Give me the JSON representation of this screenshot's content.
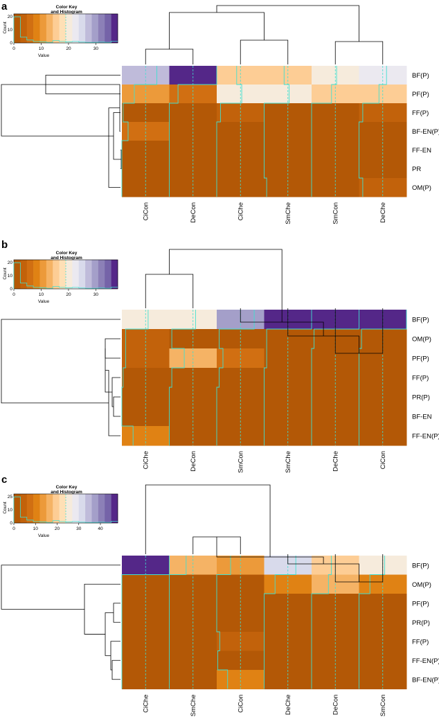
{
  "colors": {
    "palette": [
      "#b35806",
      "#c2620b",
      "#d16f12",
      "#e08214",
      "#ec9a3a",
      "#f5b365",
      "#fdcd95",
      "#fee0b6",
      "#f6ebdc",
      "#ebe9f0",
      "#d8daeb",
      "#bfbbda",
      "#a49fc9",
      "#8c80b7",
      "#7563a8",
      "#542788"
    ],
    "trace": "#40e0d0",
    "line": "#000000"
  },
  "chart_data": [
    {
      "type": "heatmap",
      "panel": "a",
      "color_key": {
        "title_line1": "Color Key",
        "title_line2": "and Histogram",
        "xlabel": "Value",
        "ylabel": "Count",
        "ticks": [
          "0",
          "10",
          "20",
          "30"
        ],
        "yticks": [
          "0",
          "10",
          "20"
        ],
        "range": [
          0,
          38
        ]
      },
      "rows": [
        "BF(P)",
        "PF(P)",
        "FF(P)",
        "BF-EN(P)",
        "FF-EN",
        "PR",
        "OM(P)"
      ],
      "cols": [
        "CiCon",
        "DeCon",
        "CiChe",
        "SmChe",
        "SmCon",
        "DeChe"
      ],
      "values": [
        [
          28,
          38,
          16,
          16,
          20,
          22
        ],
        [
          10,
          7,
          20,
          20,
          16,
          16
        ],
        [
          1,
          0,
          3,
          0,
          0,
          3
        ],
        [
          5,
          0,
          0,
          0,
          0,
          0
        ],
        [
          0,
          0,
          0,
          0,
          0,
          0
        ],
        [
          0,
          0,
          0,
          0,
          0,
          0
        ],
        [
          0,
          0,
          0,
          2,
          0,
          3
        ]
      ],
      "col_dendrogram": "((CiCon,DeCon),((CiChe,SmChe),(SmCon,DeChe)))",
      "row_dendrogram": "((BF(P),PF(P)),(FF(P),(BF-EN(P),(FF-EN,PR)),OM(P)))"
    },
    {
      "type": "heatmap",
      "panel": "b",
      "color_key": {
        "title_line1": "Color Key",
        "title_line2": "and Histogram",
        "xlabel": "Value",
        "ylabel": "Count",
        "ticks": [
          "0",
          "10",
          "20",
          "30"
        ],
        "yticks": [
          "0",
          "10",
          "20"
        ],
        "range": [
          0,
          38
        ]
      },
      "rows": [
        "BF(P)",
        "OM(P)",
        "PF(P)",
        "FF(P)",
        "PR(P)",
        "BF-EN",
        "FF-EN(P)"
      ],
      "cols": [
        "CiChe",
        "DeCon",
        "SmCon",
        "SmChe",
        "DeChe",
        "CiCon"
      ],
      "values": [
        [
          21,
          21,
          30,
          38,
          38,
          38
        ],
        [
          3,
          2,
          2,
          2,
          2,
          2
        ],
        [
          3,
          12,
          5,
          2,
          0,
          0
        ],
        [
          1,
          2,
          2,
          0,
          0,
          0
        ],
        [
          0,
          0,
          0,
          0,
          0,
          0
        ],
        [
          0,
          0,
          0,
          0,
          0,
          0
        ],
        [
          9,
          0,
          0,
          0,
          0,
          0
        ]
      ],
      "col_dendrogram": "((CiChe,DeCon),(SmCon,(SmChe,(DeChe,CiCon))))",
      "row_dendrogram": "(BF(P),((OM(P),PF(P)),(FF(P),(PR(P),BF-EN)),FF-EN(P)))"
    },
    {
      "type": "heatmap",
      "panel": "c",
      "color_key": {
        "title_line1": "Color Key",
        "title_line2": "and Histogram",
        "xlabel": "Value",
        "ylabel": "Count",
        "ticks": [
          "0",
          "10",
          "20",
          "30",
          "40"
        ],
        "yticks": [
          "0",
          "10",
          "25"
        ],
        "range": [
          0,
          48
        ]
      },
      "rows": [
        "BF(P)",
        "OM(P)",
        "PF(P)",
        "PR(P)",
        "FF(P)",
        "FF-EN(P)",
        "BF-EN(P)"
      ],
      "cols": [
        "CiChe",
        "SmChe",
        "CiCon",
        "DeChe",
        "DeCon",
        "SmCon"
      ],
      "values": [
        [
          48,
          17,
          14,
          32,
          20,
          26
        ],
        [
          0,
          0,
          0,
          11,
          17,
          11
        ],
        [
          0,
          0,
          0,
          0,
          0,
          0
        ],
        [
          0,
          0,
          0,
          0,
          0,
          0
        ],
        [
          0,
          0,
          3,
          0,
          0,
          0
        ],
        [
          0,
          0,
          1,
          0,
          0,
          0
        ],
        [
          0,
          0,
          11,
          0,
          0,
          0
        ]
      ],
      "col_dendrogram": "(CiChe,((SmChe,CiCon),(DeChe,(DeCon,SmCon))))",
      "row_dendrogram": "(BF(P),(OM(P),((PF(P),PR(P)),(FF(P),(FF-EN(P),BF-EN(P))))))"
    }
  ]
}
